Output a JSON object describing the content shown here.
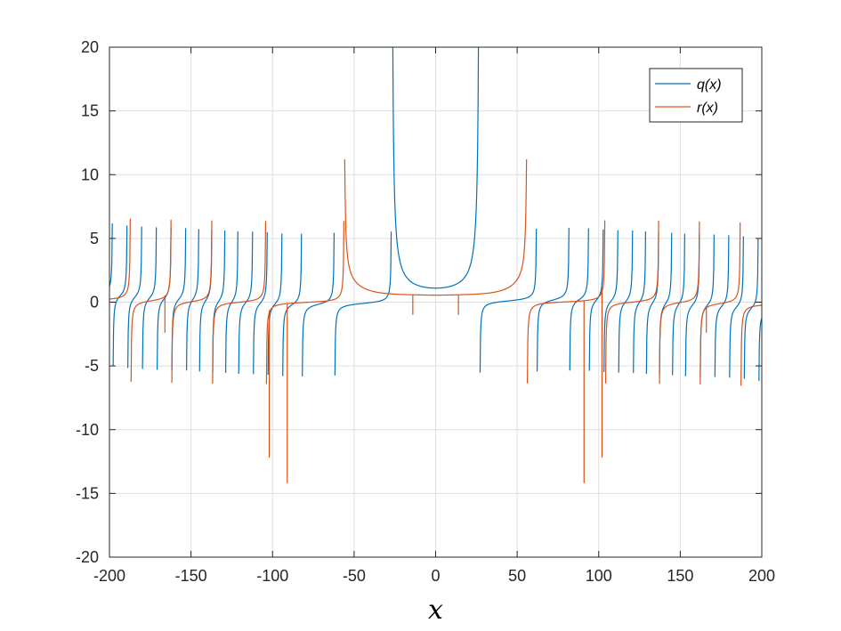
{
  "chart_data": {
    "type": "line",
    "title": "",
    "xlabel": "x",
    "ylabel": "",
    "xlim": [
      -200,
      200
    ],
    "ylim": [
      -20,
      20
    ],
    "xticks": [
      -200,
      -150,
      -100,
      -50,
      0,
      50,
      100,
      150,
      200
    ],
    "xtick_labels": [
      "-200",
      "-150",
      "-100",
      "-50",
      "0",
      "50",
      "100",
      "150",
      "200"
    ],
    "yticks": [
      -20,
      -15,
      -10,
      -5,
      0,
      5,
      10,
      15,
      20
    ],
    "ytick_labels": [
      "-20",
      "-15",
      "-10",
      "-5",
      "0",
      "5",
      "10",
      "15",
      "20"
    ],
    "grid": true,
    "legend_position": "top-right",
    "series": [
      {
        "name": "q(x)",
        "color": "#0072BD",
        "poles": [
          -198,
          -189,
          -180,
          -171,
          -162,
          -153,
          -145,
          -137,
          -129,
          -121,
          -112,
          -103,
          -94,
          -82,
          -62,
          -27,
          27,
          62,
          82,
          94,
          103,
          112,
          121,
          129,
          137,
          145,
          153,
          162,
          171,
          180,
          189,
          198
        ],
        "values_at": {
          "x": [
            0,
            20,
            -20,
            40,
            -40
          ],
          "y": [
            1.1,
            1.8,
            1.8,
            -0.5,
            0.5
          ]
        }
      },
      {
        "name": "r(x)",
        "color": "#D95319",
        "poles": [
          -187,
          -162,
          -137,
          -104,
          -56,
          56,
          104,
          137,
          162,
          187
        ],
        "peaks": {
          "x": [
            -53,
            53
          ],
          "y": [
            11.2,
            11.2
          ]
        },
        "values_at": {
          "x": [
            0,
            30,
            -30
          ],
          "y": [
            0.45,
            0.6,
            0.6
          ]
        },
        "spikes": {
          "x": [
            -166,
            -102,
            -91,
            -14,
            14,
            91,
            102,
            166
          ],
          "y": [
            -2.4,
            -12.2,
            -14.2,
            -1,
            -1,
            -14.2,
            -12.2,
            -2.4
          ]
        }
      }
    ]
  }
}
